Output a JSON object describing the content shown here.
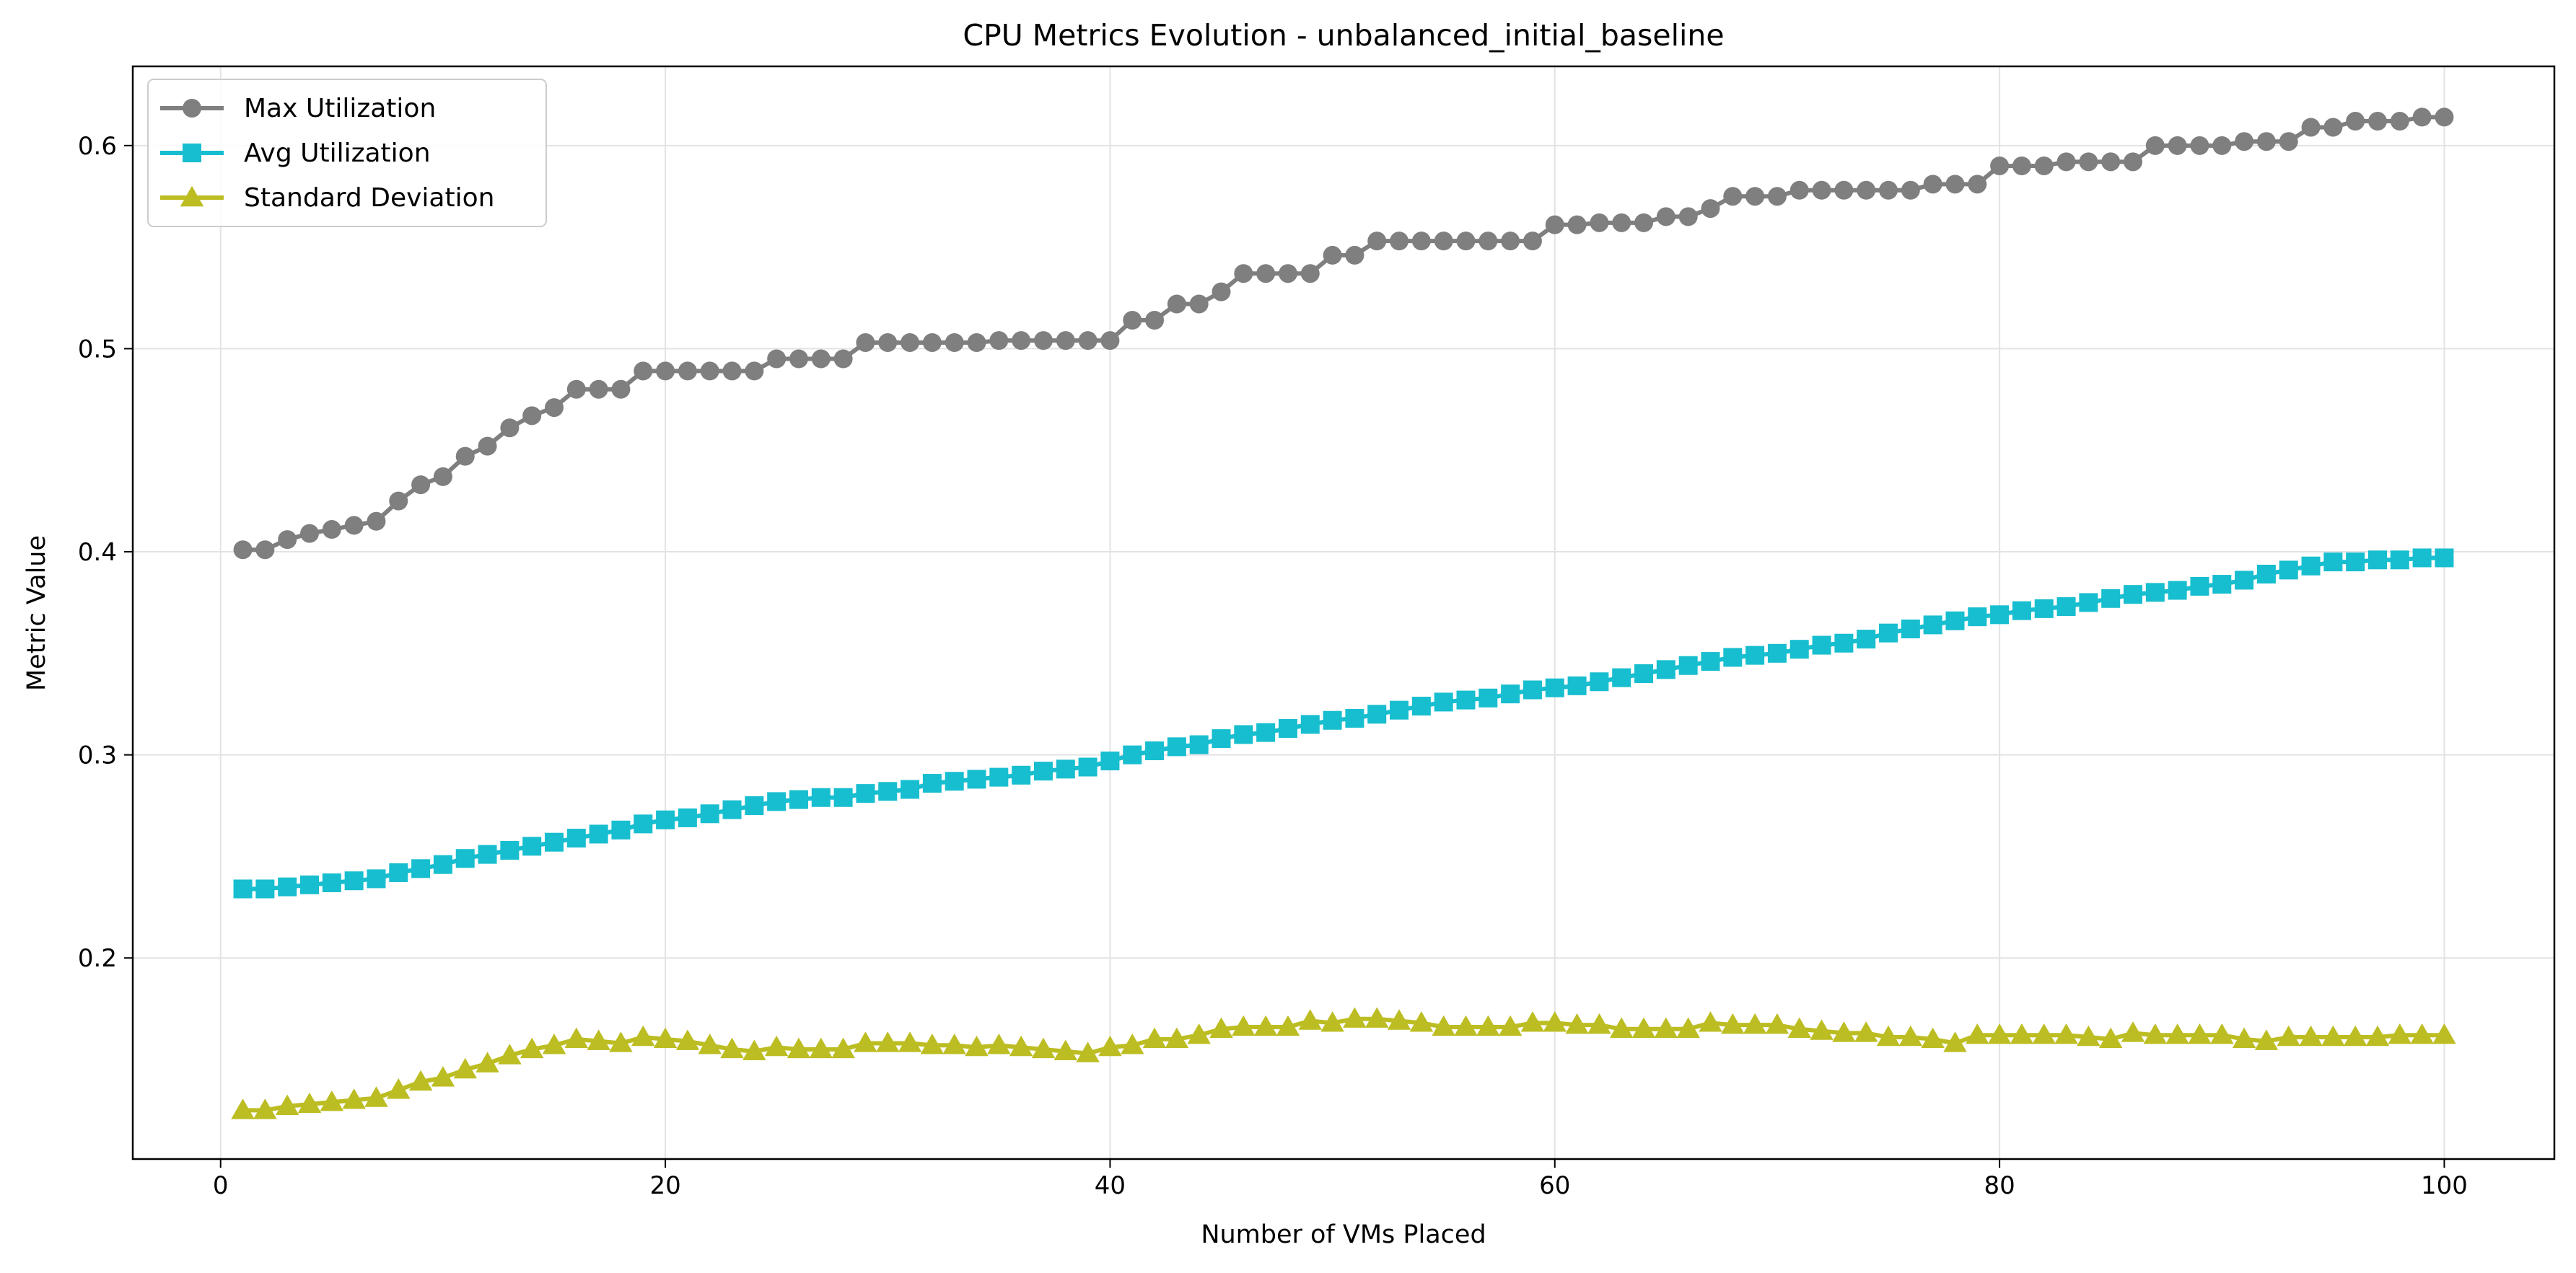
{
  "chart_data": {
    "type": "line",
    "title": "CPU Metrics Evolution - unbalanced_initial_baseline",
    "xlabel": "Number of VMs Placed",
    "ylabel": "Metric Value",
    "xlim": [
      -3.95,
      104.95
    ],
    "ylim": [
      0.101,
      0.639
    ],
    "xticks": [
      0,
      20,
      40,
      60,
      80,
      100
    ],
    "xtick_labels": [
      "0",
      "20",
      "40",
      "60",
      "80",
      "100"
    ],
    "yticks": [
      0.2,
      0.3,
      0.4,
      0.5,
      0.6
    ],
    "ytick_labels": [
      "0.2",
      "0.3",
      "0.4",
      "0.5",
      "0.6"
    ],
    "grid": true,
    "legend_position": "top-left",
    "x": [
      1,
      2,
      3,
      4,
      5,
      6,
      7,
      8,
      9,
      10,
      11,
      12,
      13,
      14,
      15,
      16,
      17,
      18,
      19,
      20,
      21,
      22,
      23,
      24,
      25,
      26,
      27,
      28,
      29,
      30,
      31,
      32,
      33,
      34,
      35,
      36,
      37,
      38,
      39,
      40,
      41,
      42,
      43,
      44,
      45,
      46,
      47,
      48,
      49,
      50,
      51,
      52,
      53,
      54,
      55,
      56,
      57,
      58,
      59,
      60,
      61,
      62,
      63,
      64,
      65,
      66,
      67,
      68,
      69,
      70,
      71,
      72,
      73,
      74,
      75,
      76,
      77,
      78,
      79,
      80,
      81,
      82,
      83,
      84,
      85,
      86,
      87,
      88,
      89,
      90,
      91,
      92,
      93,
      94,
      95,
      96,
      97,
      98,
      99,
      100
    ],
    "series": [
      {
        "name": "Max Utilization",
        "color": "#7f7f7f",
        "marker": "circle",
        "values": [
          0.401,
          0.401,
          0.406,
          0.409,
          0.411,
          0.413,
          0.415,
          0.425,
          0.433,
          0.437,
          0.447,
          0.452,
          0.461,
          0.467,
          0.471,
          0.48,
          0.48,
          0.48,
          0.489,
          0.489,
          0.489,
          0.489,
          0.489,
          0.489,
          0.495,
          0.495,
          0.495,
          0.495,
          0.503,
          0.503,
          0.503,
          0.503,
          0.503,
          0.503,
          0.504,
          0.504,
          0.504,
          0.504,
          0.504,
          0.504,
          0.514,
          0.514,
          0.522,
          0.522,
          0.528,
          0.537,
          0.537,
          0.537,
          0.537,
          0.546,
          0.546,
          0.553,
          0.553,
          0.553,
          0.553,
          0.553,
          0.553,
          0.553,
          0.553,
          0.561,
          0.561,
          0.562,
          0.562,
          0.562,
          0.565,
          0.565,
          0.569,
          0.575,
          0.575,
          0.575,
          0.578,
          0.578,
          0.578,
          0.578,
          0.578,
          0.578,
          0.581,
          0.581,
          0.581,
          0.59,
          0.59,
          0.59,
          0.592,
          0.592,
          0.592,
          0.592,
          0.6,
          0.6,
          0.6,
          0.6,
          0.602,
          0.602,
          0.602,
          0.609,
          0.609,
          0.612,
          0.612,
          0.612,
          0.614,
          0.614
        ]
      },
      {
        "name": "Avg Utilization",
        "color": "#17becf",
        "marker": "square",
        "values": [
          0.234,
          0.234,
          0.235,
          0.236,
          0.237,
          0.238,
          0.239,
          0.242,
          0.244,
          0.246,
          0.249,
          0.251,
          0.253,
          0.255,
          0.257,
          0.259,
          0.261,
          0.263,
          0.266,
          0.268,
          0.269,
          0.271,
          0.273,
          0.275,
          0.277,
          0.278,
          0.279,
          0.279,
          0.281,
          0.282,
          0.283,
          0.286,
          0.287,
          0.288,
          0.289,
          0.29,
          0.292,
          0.293,
          0.294,
          0.297,
          0.3,
          0.302,
          0.304,
          0.305,
          0.308,
          0.31,
          0.311,
          0.313,
          0.315,
          0.317,
          0.318,
          0.32,
          0.322,
          0.324,
          0.326,
          0.327,
          0.328,
          0.33,
          0.332,
          0.333,
          0.334,
          0.336,
          0.338,
          0.34,
          0.342,
          0.344,
          0.346,
          0.348,
          0.349,
          0.35,
          0.352,
          0.354,
          0.355,
          0.357,
          0.36,
          0.362,
          0.364,
          0.366,
          0.368,
          0.369,
          0.371,
          0.372,
          0.373,
          0.375,
          0.377,
          0.379,
          0.38,
          0.381,
          0.383,
          0.384,
          0.386,
          0.389,
          0.391,
          0.393,
          0.395,
          0.395,
          0.396,
          0.396,
          0.397,
          0.397
        ]
      },
      {
        "name": "Standard Deviation",
        "color": "#bcbd22",
        "marker": "triangle",
        "values": [
          0.125,
          0.125,
          0.127,
          0.128,
          0.129,
          0.13,
          0.131,
          0.135,
          0.139,
          0.141,
          0.145,
          0.148,
          0.152,
          0.155,
          0.157,
          0.16,
          0.159,
          0.158,
          0.161,
          0.16,
          0.159,
          0.157,
          0.155,
          0.154,
          0.156,
          0.155,
          0.155,
          0.155,
          0.158,
          0.158,
          0.158,
          0.157,
          0.157,
          0.156,
          0.157,
          0.156,
          0.155,
          0.154,
          0.153,
          0.156,
          0.157,
          0.16,
          0.16,
          0.162,
          0.165,
          0.166,
          0.166,
          0.166,
          0.169,
          0.168,
          0.17,
          0.17,
          0.169,
          0.168,
          0.166,
          0.166,
          0.166,
          0.166,
          0.168,
          0.168,
          0.167,
          0.167,
          0.165,
          0.165,
          0.165,
          0.165,
          0.168,
          0.167,
          0.167,
          0.167,
          0.165,
          0.164,
          0.163,
          0.163,
          0.161,
          0.161,
          0.16,
          0.158,
          0.162,
          0.162,
          0.162,
          0.162,
          0.162,
          0.161,
          0.16,
          0.163,
          0.162,
          0.162,
          0.162,
          0.162,
          0.16,
          0.159,
          0.161,
          0.161,
          0.161,
          0.161,
          0.161,
          0.162,
          0.162,
          0.162
        ]
      }
    ]
  }
}
